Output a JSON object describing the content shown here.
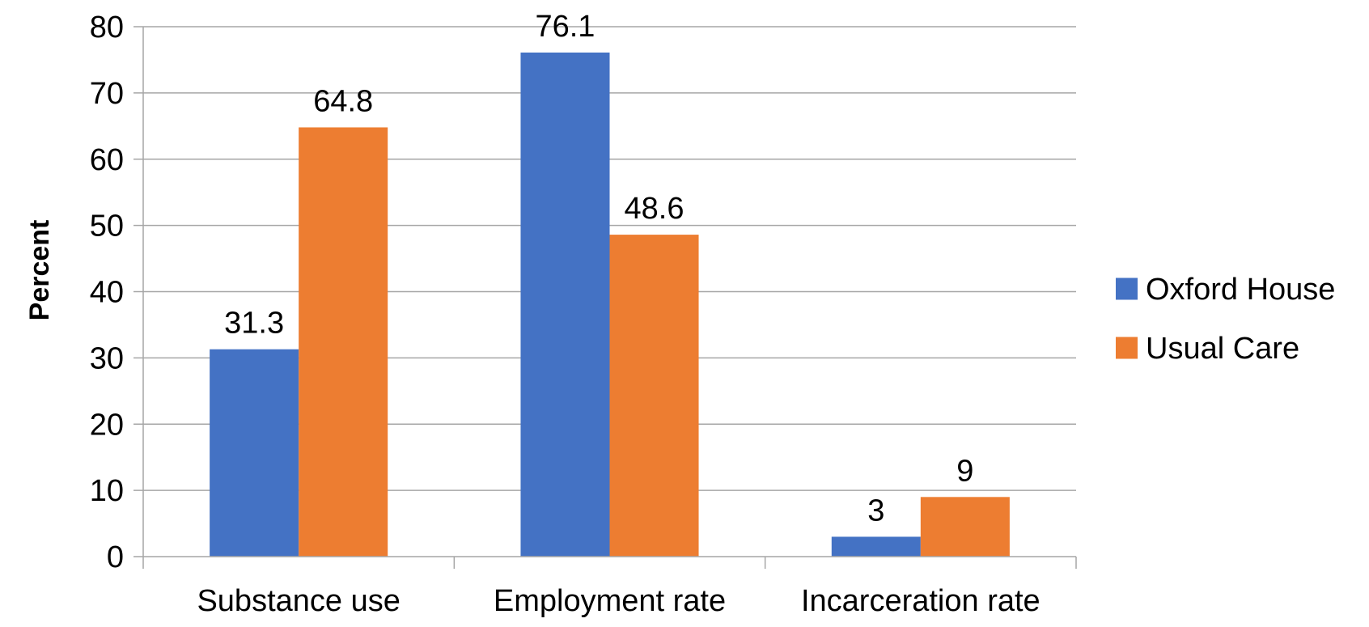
{
  "chart_data": {
    "type": "bar",
    "title": "",
    "xlabel": "",
    "ylabel": "Percent",
    "ylim": [
      0,
      80
    ],
    "yticks": [
      0,
      10,
      20,
      30,
      40,
      50,
      60,
      70,
      80
    ],
    "grid": true,
    "legend_position": "right",
    "categories": [
      "Substance use",
      "Employment rate",
      "Incarceration rate"
    ],
    "series": [
      {
        "name": "Oxford House",
        "color": "#4472C4",
        "values": [
          31.3,
          76.1,
          3
        ],
        "labels": [
          "31.3",
          "76.1",
          "3"
        ]
      },
      {
        "name": "Usual Care",
        "color": "#ED7D31",
        "values": [
          64.8,
          48.6,
          9
        ],
        "labels": [
          "64.8",
          "48.6",
          "9"
        ]
      }
    ]
  }
}
